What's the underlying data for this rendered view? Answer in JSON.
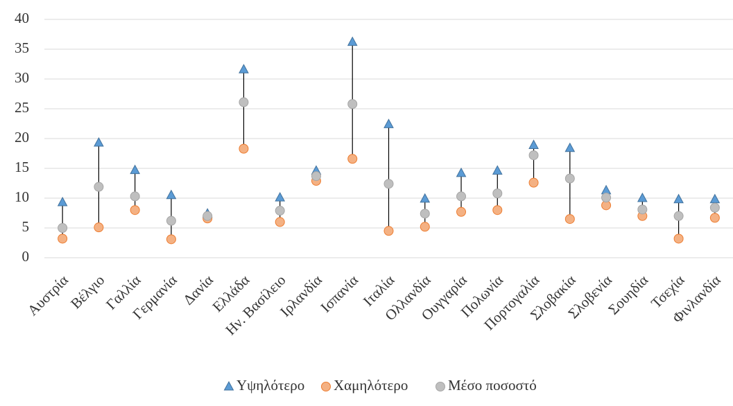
{
  "chart_data": {
    "type": "high-low",
    "categories": [
      "Αυστρία",
      "Βέλγιο",
      "Γαλλία",
      "Γερμανία",
      "Δανία",
      "Ελλάδα",
      "Ην. Βασίλειο",
      "Ιρλανδία",
      "Ισπανία",
      "Ιταλία",
      "Ολλανδία",
      "Ουγγαρία",
      "Πολωνία",
      "Πορτογαλία",
      "Σλοβακία",
      "Σλοβενία",
      "Σουηδία",
      "Τσεχία",
      "Φινλανδία"
    ],
    "series": [
      {
        "name": "Υψηλότερο",
        "color": "#5b9bd5",
        "marker": "triangle",
        "values": [
          9.3,
          19.3,
          14.7,
          10.5,
          7.4,
          31.6,
          10.1,
          14.6,
          36.2,
          22.4,
          9.9,
          14.2,
          14.6,
          18.9,
          18.4,
          11.3,
          10.0,
          9.8,
          9.8
        ]
      },
      {
        "name": "Χαμηλότερο",
        "color": "#f4b183",
        "marker": "circle",
        "values": [
          3.2,
          5.1,
          8.0,
          3.1,
          6.6,
          18.3,
          6.0,
          12.9,
          16.6,
          4.5,
          5.2,
          7.7,
          8.0,
          12.6,
          6.5,
          8.8,
          7.0,
          3.2,
          6.7
        ]
      },
      {
        "name": "Μέσο ποσοστό",
        "color": "#bfbfbf",
        "marker": "circle",
        "values": [
          5.0,
          11.9,
          10.3,
          6.2,
          7.0,
          26.1,
          7.9,
          13.7,
          25.8,
          12.4,
          7.4,
          10.3,
          10.8,
          17.2,
          13.3,
          10.1,
          8.1,
          7.0,
          8.4
        ]
      }
    ],
    "ylim": [
      0,
      40
    ],
    "yticks": [
      0,
      5,
      10,
      15,
      20,
      25,
      30,
      35,
      40
    ],
    "grid": true,
    "legend": "bottom"
  }
}
